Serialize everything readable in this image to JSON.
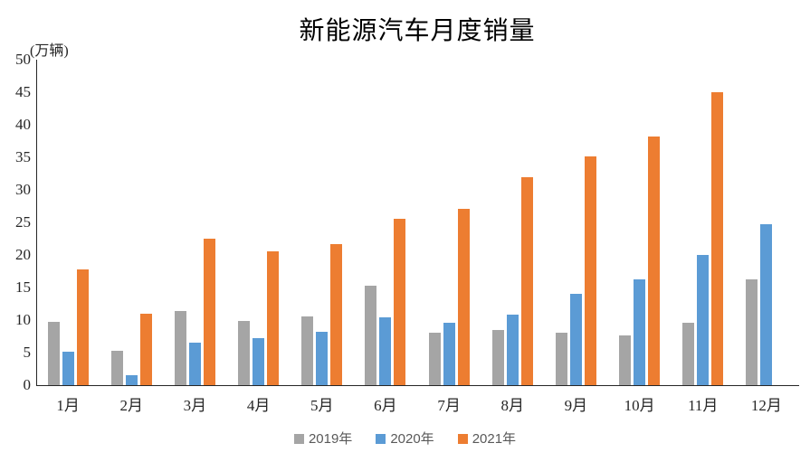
{
  "chart_data": {
    "type": "bar",
    "title": "新能源汽车月度销量",
    "unit_label": "(万辆)",
    "xlabel": "",
    "ylabel": "(万辆)",
    "ylim": [
      0,
      50
    ],
    "ytick_step": 5,
    "grid": false,
    "legend_position": "bottom",
    "categories": [
      "1月",
      "2月",
      "3月",
      "4月",
      "5月",
      "6月",
      "7月",
      "8月",
      "9月",
      "10月",
      "11月",
      "12月"
    ],
    "series": [
      {
        "name": "2019年",
        "color": "#A5A5A5",
        "values": [
          9.7,
          5.3,
          11.4,
          9.8,
          10.6,
          15.3,
          8.1,
          8.5,
          8.1,
          7.7,
          9.6,
          16.3
        ]
      },
      {
        "name": "2020年",
        "color": "#5B9BD5",
        "values": [
          5.1,
          1.5,
          6.5,
          7.2,
          8.2,
          10.4,
          9.6,
          10.8,
          14.0,
          16.2,
          20.0,
          24.7
        ]
      },
      {
        "name": "2021年",
        "color": "#ED7D31",
        "values": [
          17.8,
          11.0,
          22.5,
          20.6,
          21.7,
          25.6,
          27.1,
          32.0,
          35.2,
          38.2,
          45.0,
          null
        ]
      }
    ],
    "axis_color": "#262626",
    "title_color": "#000000",
    "legend_text_color": "#595959"
  }
}
